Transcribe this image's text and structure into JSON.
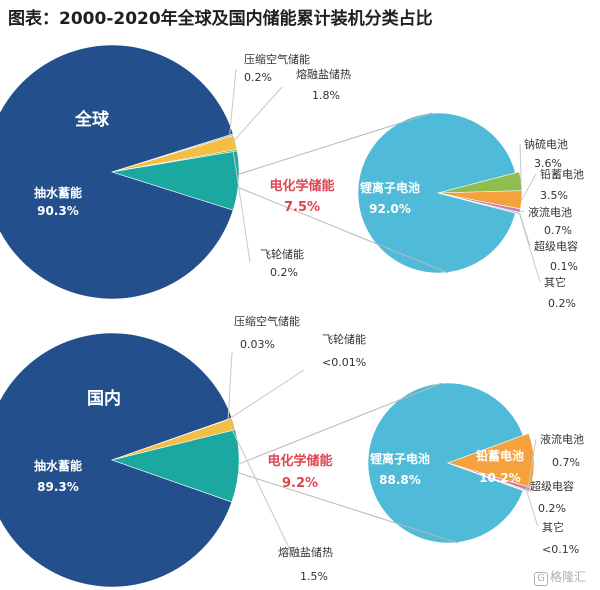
{
  "title": "图表：2000-2020年全球及国内储能累计装机分类占比",
  "watermark": "格隆汇",
  "colors": {
    "pumped": "#234F8C",
    "compressed_air": "#A6A6A6",
    "molten_salt": "#F2BE45",
    "flywheel": "#70A83A",
    "electrochemical": "#1BA8A0",
    "lithium": "#4FBBD8",
    "sodium_sulfur": "#8DBE4F",
    "lead": "#F5A23C",
    "flow": "#C97FB0",
    "supercap": "#E27040",
    "other": "#3E7FC1",
    "ec_label": "#E0444F",
    "leader": "#C8C8C8"
  },
  "chart_data": [
    {
      "type": "pie",
      "region": "全球",
      "main": [
        {
          "name": "抽水蓄能",
          "value": 90.3,
          "label": "90.3%",
          "color": "pumped"
        },
        {
          "name": "压缩空气储能",
          "value": 0.2,
          "label": "0.2%",
          "color": "compressed_air"
        },
        {
          "name": "熔融盐储热",
          "value": 1.8,
          "label": "1.8%",
          "color": "molten_salt"
        },
        {
          "name": "飞轮储能",
          "value": 0.2,
          "label": "0.2%",
          "color": "flywheel"
        },
        {
          "name": "电化学储能",
          "value": 7.5,
          "label": "7.5%",
          "color": "electrochemical"
        }
      ],
      "breakdown": [
        {
          "name": "锂离子电池",
          "value": 92.0,
          "label": "92.0%",
          "color": "lithium"
        },
        {
          "name": "钠硫电池",
          "value": 3.6,
          "label": "3.6%",
          "color": "sodium_sulfur"
        },
        {
          "name": "铅蓄电池",
          "value": 3.5,
          "label": "3.5%",
          "color": "lead"
        },
        {
          "name": "液流电池",
          "value": 0.7,
          "label": "0.7%",
          "color": "flow"
        },
        {
          "name": "超级电容",
          "value": 0.1,
          "label": "0.1%",
          "color": "supercap"
        },
        {
          "name": "其它",
          "value": 0.2,
          "label": "0.2%",
          "color": "other"
        }
      ]
    },
    {
      "type": "pie",
      "region": "国内",
      "main": [
        {
          "name": "抽水蓄能",
          "value": 89.3,
          "label": "89.3%",
          "color": "pumped"
        },
        {
          "name": "压缩空气储能",
          "value": 0.03,
          "label": "0.03%",
          "color": "compressed_air"
        },
        {
          "name": "飞轮储能",
          "value": 0.01,
          "label": "<0.01%",
          "color": "flywheel"
        },
        {
          "name": "熔融盐储热",
          "value": 1.5,
          "label": "1.5%",
          "color": "molten_salt"
        },
        {
          "name": "电化学储能",
          "value": 9.2,
          "label": "9.2%",
          "color": "electrochemical"
        }
      ],
      "breakdown": [
        {
          "name": "锂离子电池",
          "value": 88.8,
          "label": "88.8%",
          "color": "lithium"
        },
        {
          "name": "铅蓄电池",
          "value": 10.2,
          "label": "10.2%",
          "color": "lead"
        },
        {
          "name": "液流电池",
          "value": 0.7,
          "label": "0.7%",
          "color": "flow"
        },
        {
          "name": "超级电容",
          "value": 0.2,
          "label": "0.2%",
          "color": "supercap"
        },
        {
          "name": "其它",
          "value": 0.1,
          "label": "<0.1%",
          "color": "other"
        }
      ]
    }
  ]
}
